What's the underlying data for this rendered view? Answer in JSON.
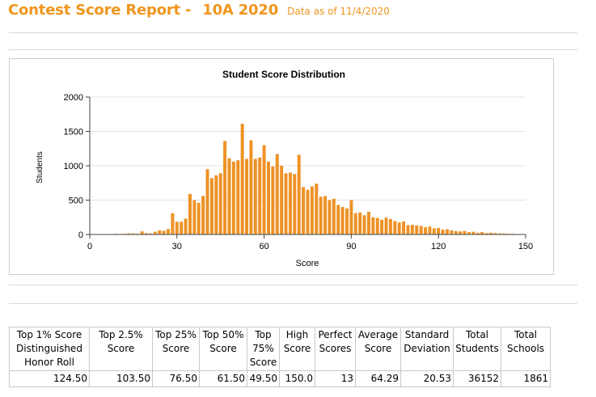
{
  "header": {
    "title_left": "Contest Score Report -",
    "title_right": "10A 2020",
    "subtitle": "Data as of 11/4/2020"
  },
  "colors": {
    "accent": "#f0961e",
    "bar": "#ee9124",
    "grid": "#e3e3e3",
    "border": "#cfcfcf"
  },
  "chart_data": {
    "type": "bar",
    "title": "Student Score Distribution",
    "xlabel": "Score",
    "ylabel": "Students",
    "xlim": [
      0,
      150
    ],
    "ylim": [
      0,
      2000
    ],
    "xticks": [
      0,
      30,
      60,
      90,
      120,
      150
    ],
    "yticks": [
      0,
      500,
      1000,
      1500,
      2000
    ],
    "grid": true,
    "bar_width": 1.1,
    "x": [
      6,
      7.5,
      9,
      10.5,
      12,
      13.5,
      15,
      16.5,
      18,
      19.5,
      21,
      22.5,
      24,
      25.5,
      27,
      28.5,
      30,
      31.5,
      33,
      34.5,
      36,
      37.5,
      39,
      40.5,
      42,
      43.5,
      45,
      46.5,
      48,
      49.5,
      51,
      52.5,
      54,
      55.5,
      57,
      58.5,
      60,
      61.5,
      63,
      64.5,
      66,
      67.5,
      69,
      70.5,
      72,
      73.5,
      75,
      76.5,
      78,
      79.5,
      81,
      82.5,
      84,
      85.5,
      87,
      88.5,
      90,
      91.5,
      93,
      94.5,
      96,
      97.5,
      99,
      100.5,
      102,
      103.5,
      105,
      106.5,
      108,
      109.5,
      111,
      112.5,
      114,
      115.5,
      117,
      118.5,
      120,
      121.5,
      123,
      124.5,
      126,
      127.5,
      129,
      130.5,
      132,
      133.5,
      135,
      136.5,
      138,
      139.5,
      141,
      142.5,
      144,
      145.5
    ],
    "values": [
      5,
      5,
      10,
      5,
      10,
      15,
      15,
      10,
      45,
      20,
      15,
      40,
      60,
      55,
      80,
      310,
      185,
      185,
      230,
      590,
      500,
      460,
      560,
      950,
      820,
      860,
      890,
      1360,
      1110,
      1060,
      1080,
      1610,
      1100,
      1370,
      1100,
      1120,
      1300,
      1060,
      990,
      1170,
      1000,
      890,
      900,
      880,
      1160,
      690,
      650,
      700,
      740,
      550,
      560,
      500,
      520,
      430,
      400,
      380,
      500,
      310,
      320,
      280,
      330,
      250,
      240,
      215,
      245,
      225,
      195,
      175,
      190,
      135,
      140,
      130,
      125,
      105,
      115,
      90,
      95,
      70,
      75,
      60,
      50,
      45,
      50,
      35,
      40,
      25,
      35,
      20,
      25,
      20,
      15,
      15,
      10,
      10
    ]
  },
  "table": {
    "headers": [
      "Top 1% Score Distinguished Honor Roll",
      "Top 2.5% Score",
      "Top 25% Score",
      "Top 50% Score",
      "Top 75% Score",
      "High Score",
      "Perfect Scores",
      "Average Score",
      "Standard Deviation",
      "Total Students",
      "Total Schools"
    ],
    "values": [
      "124.50",
      "103.50",
      "76.50",
      "61.50",
      "49.50",
      "150.0",
      "13",
      "64.29",
      "20.53",
      "36152",
      "1861"
    ]
  }
}
